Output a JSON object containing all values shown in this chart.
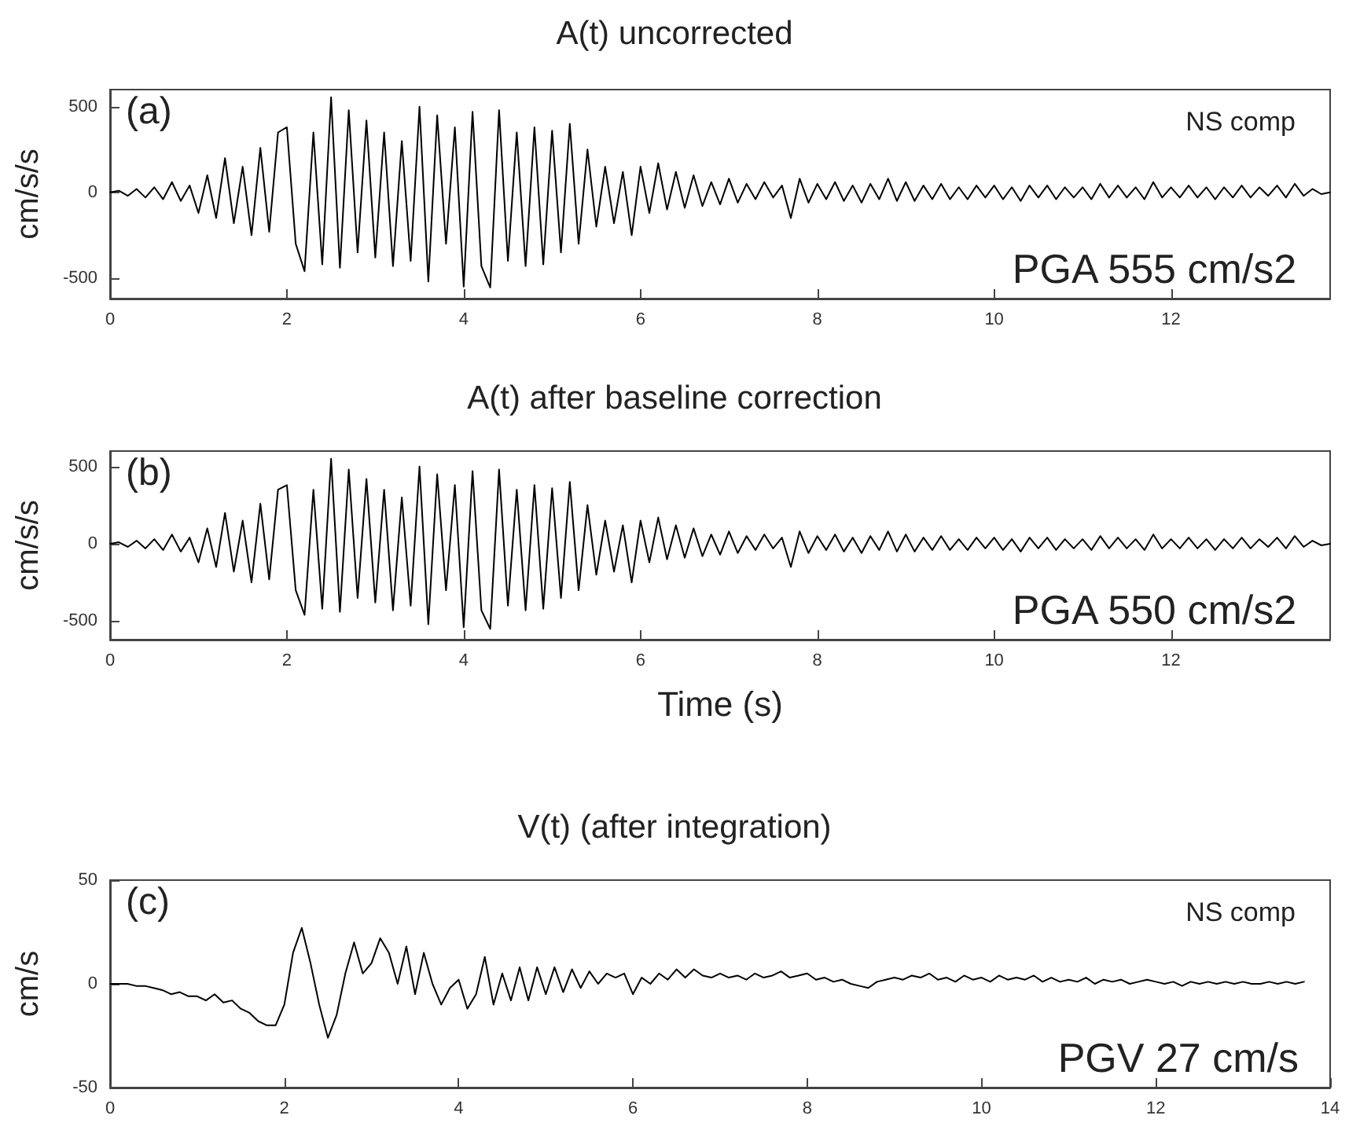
{
  "chart_data": [
    {
      "type": "line",
      "title": "A(t) uncorrected",
      "ylabel": "cm/s/s",
      "annotations": [
        "(a)",
        "NS comp",
        "PGA 555 cm/s2"
      ],
      "xlim": [
        0,
        13.8
      ],
      "xticks": [
        0,
        2,
        4,
        6,
        8,
        10,
        12
      ],
      "ylim": [
        -620,
        600
      ],
      "yticks": [
        -500,
        0,
        500
      ],
      "grid": false,
      "marker": "none",
      "line_style": "solid",
      "x": [
        0,
        0.1,
        0.2,
        0.3,
        0.4,
        0.5,
        0.6,
        0.7,
        0.8,
        0.9,
        1,
        1.1,
        1.2,
        1.3,
        1.4,
        1.5,
        1.6,
        1.7,
        1.8,
        1.9,
        2,
        2.1,
        2.2,
        2.3,
        2.4,
        2.5,
        2.6,
        2.7,
        2.8,
        2.9,
        3,
        3.1,
        3.2,
        3.3,
        3.4,
        3.5,
        3.6,
        3.7,
        3.8,
        3.9,
        4,
        4.1,
        4.2,
        4.3,
        4.4,
        4.5,
        4.6,
        4.7,
        4.8,
        4.9,
        5,
        5.1,
        5.2,
        5.3,
        5.4,
        5.5,
        5.6,
        5.7,
        5.8,
        5.9,
        6,
        6.1,
        6.2,
        6.3,
        6.4,
        6.5,
        6.6,
        6.7,
        6.8,
        6.9,
        7,
        7.1,
        7.2,
        7.3,
        7.4,
        7.5,
        7.6,
        7.7,
        7.8,
        7.9,
        8,
        8.1,
        8.2,
        8.3,
        8.4,
        8.5,
        8.6,
        8.7,
        8.8,
        8.9,
        9,
        9.1,
        9.2,
        9.3,
        9.4,
        9.5,
        9.6,
        9.7,
        9.8,
        9.9,
        10,
        10.1,
        10.2,
        10.3,
        10.4,
        10.5,
        10.6,
        10.7,
        10.8,
        10.9,
        11,
        11.1,
        11.2,
        11.3,
        11.4,
        11.5,
        11.6,
        11.7,
        11.8,
        11.9,
        12,
        12.1,
        12.2,
        12.3,
        12.4,
        12.5,
        12.6,
        12.7,
        12.8,
        12.9,
        13,
        13.1,
        13.2,
        13.3,
        13.4,
        13.5,
        13.6,
        13.7,
        13.8
      ],
      "series": [
        {
          "color": "#000000",
          "values": [
            0,
            10,
            -20,
            20,
            -30,
            30,
            -40,
            60,
            -50,
            40,
            -120,
            100,
            -150,
            200,
            -180,
            150,
            -250,
            260,
            -230,
            350,
            380,
            -300,
            -460,
            350,
            -420,
            555,
            -440,
            480,
            -350,
            420,
            -380,
            350,
            -430,
            300,
            -400,
            500,
            -520,
            450,
            -300,
            380,
            -550,
            470,
            -430,
            -555,
            480,
            -400,
            350,
            -430,
            380,
            -420,
            360,
            -350,
            400,
            -300,
            250,
            -200,
            150,
            -180,
            120,
            -250,
            150,
            -120,
            170,
            -100,
            120,
            -90,
            100,
            -80,
            60,
            -70,
            80,
            -60,
            50,
            -40,
            60,
            -30,
            40,
            -150,
            80,
            -60,
            50,
            -40,
            60,
            -50,
            40,
            -60,
            50,
            -40,
            80,
            -50,
            60,
            -50,
            40,
            -40,
            50,
            -40,
            30,
            -40,
            40,
            -30,
            40,
            -40,
            30,
            -50,
            40,
            -30,
            40,
            -40,
            30,
            -30,
            30,
            -40,
            50,
            -30,
            40,
            -30,
            30,
            -40,
            60,
            -30,
            30,
            -30,
            40,
            -30,
            30,
            -40,
            30,
            -30,
            40,
            -30,
            30,
            -20,
            40,
            -30,
            50,
            -20,
            20,
            -10,
            0
          ]
        }
      ]
    },
    {
      "type": "line",
      "title": "A(t) after baseline correction",
      "xlabel": "Time (s)",
      "ylabel": "cm/s/s",
      "annotations": [
        "(b)",
        "PGA 550 cm/s2"
      ],
      "xlim": [
        0,
        13.8
      ],
      "xticks": [
        0,
        2,
        4,
        6,
        8,
        10,
        12
      ],
      "ylim": [
        -620,
        600
      ],
      "yticks": [
        -500,
        0,
        500
      ],
      "grid": false,
      "marker": "none",
      "line_style": "solid",
      "x": [
        0,
        0.1,
        0.2,
        0.3,
        0.4,
        0.5,
        0.6,
        0.7,
        0.8,
        0.9,
        1,
        1.1,
        1.2,
        1.3,
        1.4,
        1.5,
        1.6,
        1.7,
        1.8,
        1.9,
        2,
        2.1,
        2.2,
        2.3,
        2.4,
        2.5,
        2.6,
        2.7,
        2.8,
        2.9,
        3,
        3.1,
        3.2,
        3.3,
        3.4,
        3.5,
        3.6,
        3.7,
        3.8,
        3.9,
        4,
        4.1,
        4.2,
        4.3,
        4.4,
        4.5,
        4.6,
        4.7,
        4.8,
        4.9,
        5,
        5.1,
        5.2,
        5.3,
        5.4,
        5.5,
        5.6,
        5.7,
        5.8,
        5.9,
        6,
        6.1,
        6.2,
        6.3,
        6.4,
        6.5,
        6.6,
        6.7,
        6.8,
        6.9,
        7,
        7.1,
        7.2,
        7.3,
        7.4,
        7.5,
        7.6,
        7.7,
        7.8,
        7.9,
        8,
        8.1,
        8.2,
        8.3,
        8.4,
        8.5,
        8.6,
        8.7,
        8.8,
        8.9,
        9,
        9.1,
        9.2,
        9.3,
        9.4,
        9.5,
        9.6,
        9.7,
        9.8,
        9.9,
        10,
        10.1,
        10.2,
        10.3,
        10.4,
        10.5,
        10.6,
        10.7,
        10.8,
        10.9,
        11,
        11.1,
        11.2,
        11.3,
        11.4,
        11.5,
        11.6,
        11.7,
        11.8,
        11.9,
        12,
        12.1,
        12.2,
        12.3,
        12.4,
        12.5,
        12.6,
        12.7,
        12.8,
        12.9,
        13,
        13.1,
        13.2,
        13.3,
        13.4,
        13.5,
        13.6,
        13.7,
        13.8
      ],
      "series": [
        {
          "color": "#000000",
          "values": [
            0,
            10,
            -20,
            20,
            -30,
            30,
            -40,
            60,
            -50,
            40,
            -120,
            100,
            -150,
            200,
            -180,
            150,
            -250,
            260,
            -230,
            350,
            380,
            -300,
            -460,
            350,
            -420,
            550,
            -440,
            480,
            -350,
            420,
            -380,
            350,
            -430,
            300,
            -400,
            500,
            -520,
            450,
            -300,
            380,
            -540,
            470,
            -430,
            -550,
            480,
            -400,
            350,
            -430,
            380,
            -420,
            360,
            -350,
            400,
            -300,
            250,
            -200,
            150,
            -180,
            120,
            -250,
            150,
            -120,
            170,
            -100,
            120,
            -90,
            100,
            -80,
            60,
            -70,
            80,
            -60,
            50,
            -40,
            60,
            -30,
            40,
            -150,
            80,
            -60,
            50,
            -40,
            60,
            -50,
            40,
            -60,
            50,
            -40,
            80,
            -50,
            60,
            -50,
            40,
            -40,
            50,
            -40,
            30,
            -40,
            40,
            -30,
            40,
            -40,
            30,
            -50,
            40,
            -30,
            40,
            -40,
            30,
            -30,
            30,
            -40,
            50,
            -30,
            40,
            -30,
            30,
            -40,
            60,
            -30,
            30,
            -30,
            40,
            -30,
            30,
            -40,
            30,
            -30,
            40,
            -30,
            30,
            -20,
            40,
            -30,
            50,
            -20,
            20,
            -10,
            0
          ]
        }
      ]
    },
    {
      "type": "line",
      "title": "V(t) (after integration)",
      "ylabel": "cm/s",
      "annotations": [
        "(c)",
        "NS comp",
        "PGV 27 cm/s"
      ],
      "xlim": [
        0,
        14
      ],
      "xticks": [
        0,
        2,
        4,
        6,
        8,
        10,
        12,
        14
      ],
      "ylim": [
        -50,
        50
      ],
      "yticks": [
        -50,
        0,
        50
      ],
      "grid": false,
      "marker": "none",
      "line_style": "solid",
      "x": [
        0,
        0.1,
        0.2,
        0.3,
        0.4,
        0.5,
        0.6,
        0.7,
        0.8,
        0.9,
        1,
        1.1,
        1.2,
        1.3,
        1.4,
        1.5,
        1.6,
        1.7,
        1.8,
        1.9,
        2,
        2.1,
        2.2,
        2.3,
        2.4,
        2.5,
        2.6,
        2.7,
        2.8,
        2.9,
        3,
        3.1,
        3.2,
        3.3,
        3.4,
        3.5,
        3.6,
        3.7,
        3.8,
        3.9,
        4,
        4.1,
        4.2,
        4.3,
        4.4,
        4.5,
        4.6,
        4.7,
        4.8,
        4.9,
        5,
        5.1,
        5.2,
        5.3,
        5.4,
        5.5,
        5.6,
        5.7,
        5.8,
        5.9,
        6,
        6.1,
        6.2,
        6.3,
        6.4,
        6.5,
        6.6,
        6.7,
        6.8,
        6.9,
        7,
        7.1,
        7.2,
        7.3,
        7.4,
        7.5,
        7.6,
        7.7,
        7.8,
        7.9,
        8,
        8.1,
        8.2,
        8.3,
        8.4,
        8.5,
        8.6,
        8.7,
        8.8,
        8.9,
        9,
        9.1,
        9.2,
        9.3,
        9.4,
        9.5,
        9.6,
        9.7,
        9.8,
        9.9,
        10,
        10.1,
        10.2,
        10.3,
        10.4,
        10.5,
        10.6,
        10.7,
        10.8,
        10.9,
        11,
        11.1,
        11.2,
        11.3,
        11.4,
        11.5,
        11.6,
        11.7,
        11.8,
        11.9,
        12,
        12.1,
        12.2,
        12.3,
        12.4,
        12.5,
        12.6,
        12.7,
        12.8,
        12.9,
        13,
        13.1,
        13.2,
        13.3,
        13.4,
        13.5,
        13.6,
        13.7
      ],
      "series": [
        {
          "color": "#000000",
          "values": [
            0,
            0,
            0,
            -1,
            -1,
            -2,
            -3,
            -5,
            -4,
            -6,
            -6,
            -8,
            -5,
            -9,
            -8,
            -12,
            -14,
            -18,
            -20,
            -20,
            -10,
            15,
            27,
            10,
            -10,
            -26,
            -15,
            5,
            20,
            5,
            10,
            22,
            15,
            0,
            18,
            -5,
            15,
            0,
            -10,
            -2,
            2,
            -12,
            -5,
            13,
            -10,
            5,
            -8,
            8,
            -8,
            8,
            -5,
            8,
            -4,
            7,
            -2,
            6,
            0,
            5,
            3,
            5,
            -5,
            3,
            0,
            5,
            2,
            7,
            3,
            7,
            4,
            3,
            5,
            3,
            4,
            2,
            5,
            3,
            4,
            6,
            3,
            4,
            5,
            2,
            3,
            1,
            2,
            0,
            -1,
            -2,
            1,
            2,
            3,
            2,
            4,
            3,
            5,
            2,
            3,
            1,
            4,
            2,
            3,
            1,
            4,
            2,
            3,
            2,
            4,
            1,
            3,
            1,
            2,
            1,
            3,
            0,
            2,
            1,
            2,
            0,
            1,
            2,
            1,
            0,
            1,
            -1,
            1,
            0,
            1,
            0,
            1,
            0,
            1,
            0,
            0,
            1,
            0,
            1,
            0,
            1
          ]
        }
      ]
    }
  ]
}
